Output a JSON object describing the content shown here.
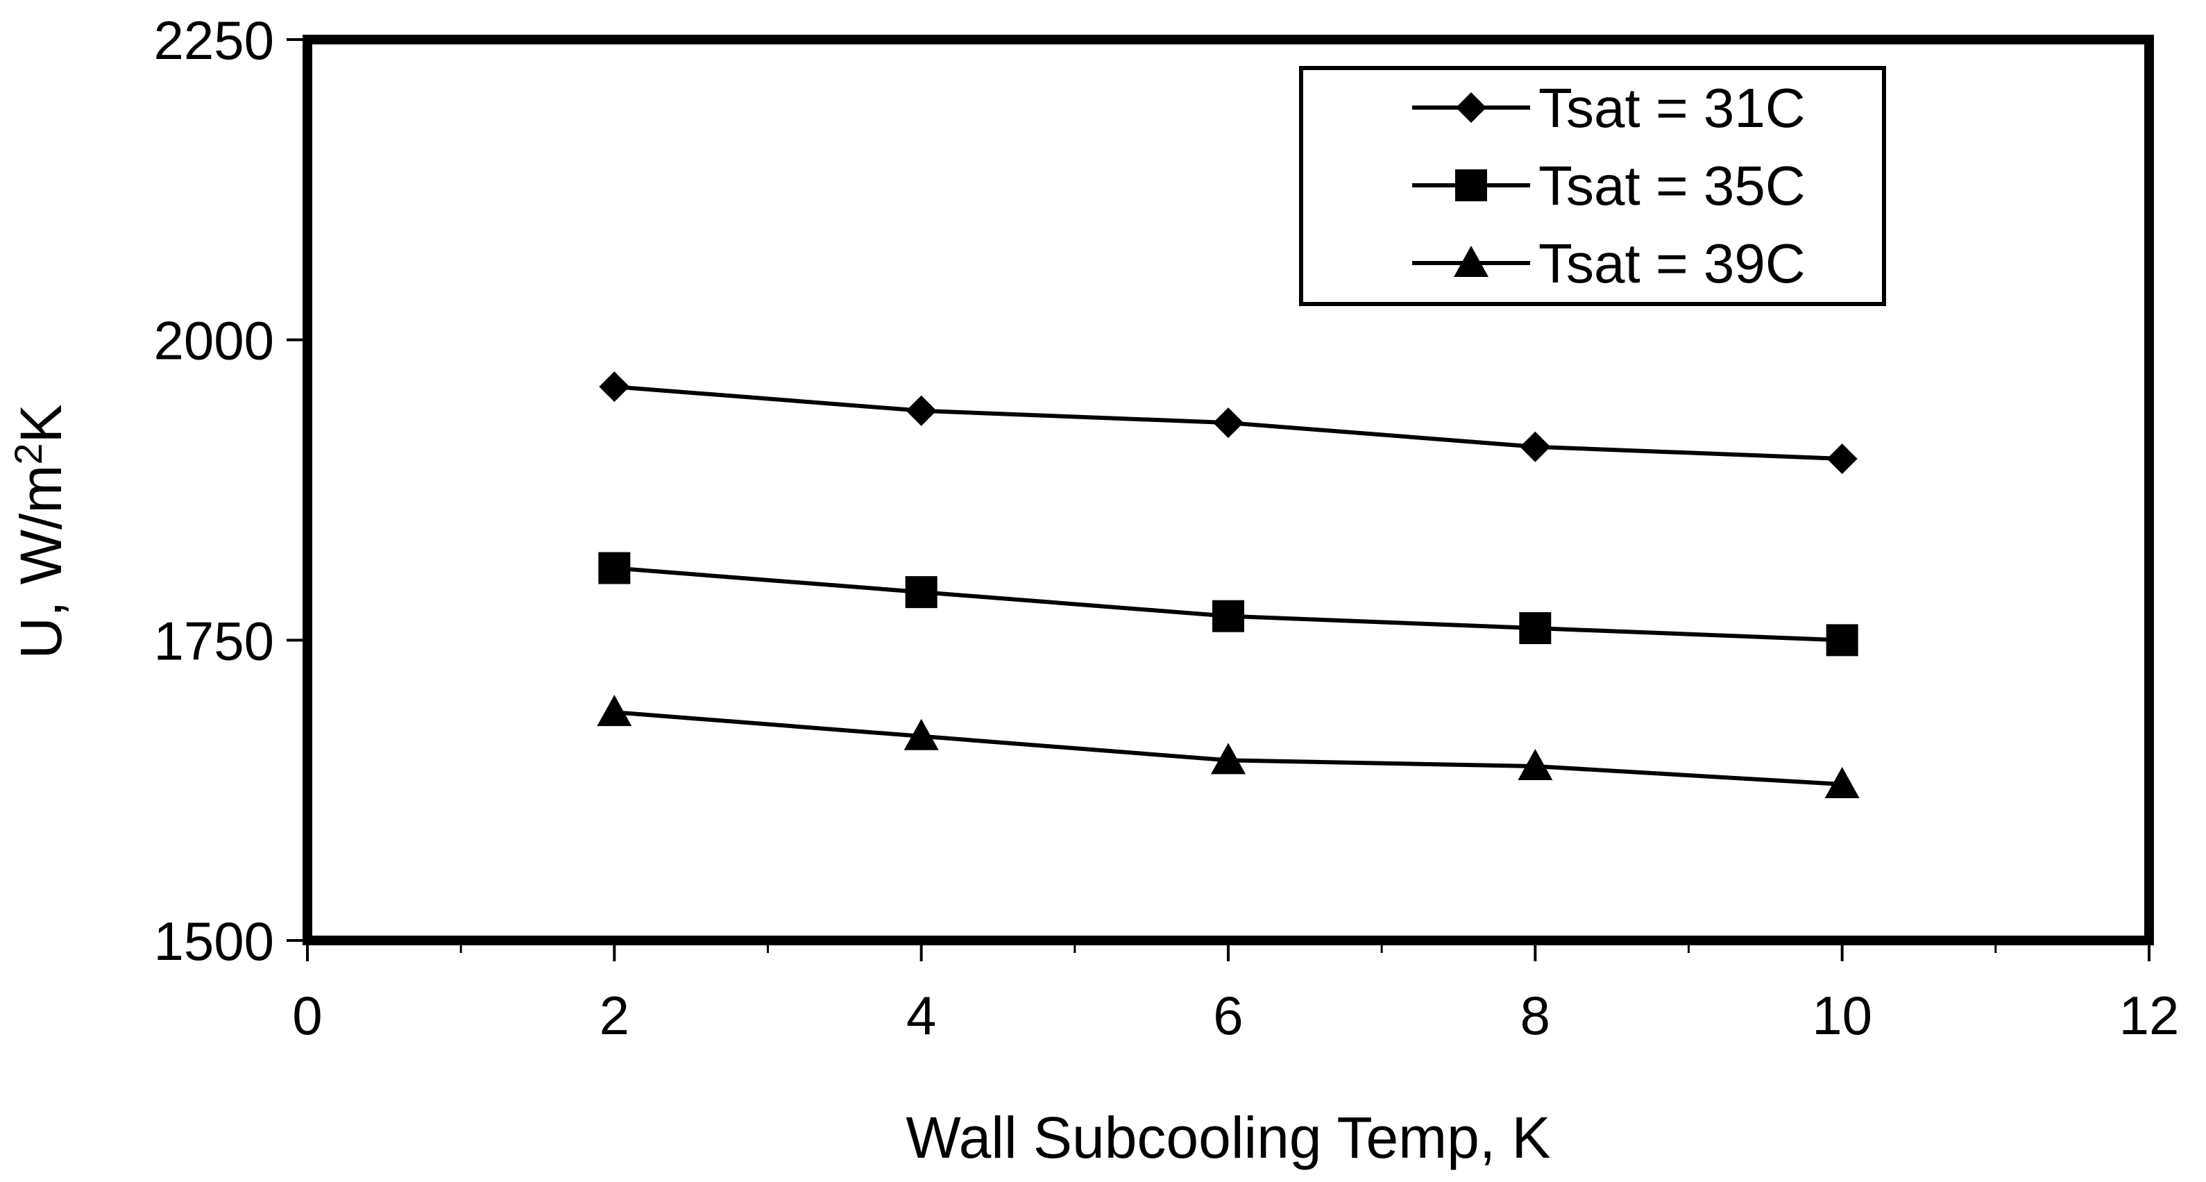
{
  "chart_data": {
    "type": "line",
    "title": "",
    "xlabel": "Wall Subcooling Temp, K",
    "ylabel_main": "U, W/m",
    "ylabel_sup": "2",
    "ylabel_tail": "K",
    "xlim": [
      0,
      12
    ],
    "ylim": [
      1500,
      2250
    ],
    "x_ticks": [
      0,
      2,
      4,
      6,
      8,
      10,
      12
    ],
    "x_tick_labels": [
      "0",
      "2",
      "4",
      "6",
      "8",
      "10",
      "12"
    ],
    "x_minor_ticks": [
      1,
      3,
      5,
      7,
      9,
      11
    ],
    "y_ticks": [
      1500,
      1750,
      2000,
      2250
    ],
    "y_tick_labels": [
      "1500",
      "1750",
      "2000",
      "2250"
    ],
    "grid": false,
    "legend_position": "top-right",
    "x": [
      2,
      4,
      6,
      8,
      10
    ],
    "series": [
      {
        "name": "Tsat = 31C",
        "marker": "diamond",
        "values": [
          1961,
          1941,
          1931,
          1911,
          1901
        ]
      },
      {
        "name": "Tsat = 35C",
        "marker": "square",
        "values": [
          1810,
          1790,
          1770,
          1760,
          1750
        ]
      },
      {
        "name": "Tsat = 39C",
        "marker": "triangle",
        "values": [
          1690,
          1670,
          1650,
          1645,
          1630
        ]
      }
    ],
    "colors": {
      "line": "#000000",
      "background": "#ffffff"
    }
  }
}
